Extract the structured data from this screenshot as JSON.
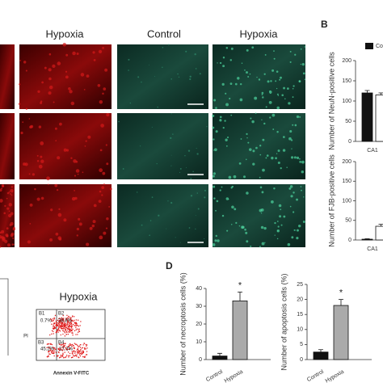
{
  "headers": [
    "Hypoxia",
    "Control",
    "Hypoxia"
  ],
  "panel_letters": [
    "B",
    "D"
  ],
  "flow": {
    "title": "Hypoxia",
    "y_label": "PI",
    "x_label": "Annexin V-FITC",
    "quadrants": [
      {
        "name": "B1",
        "percent": "0.7%"
      },
      {
        "name": "B2",
        "percent": "38.8%"
      },
      {
        "name": "B3",
        "percent": "45.2%"
      },
      {
        "name": "B4",
        "percent": "17.3%"
      }
    ]
  },
  "chart_data": [
    {
      "type": "bar",
      "y_label": "Number of NeuN-positive cells",
      "categories": [
        "CA1"
      ],
      "series": [
        {
          "name": "Co",
          "color": "#111111",
          "values": [
            120
          ],
          "errors": [
            6
          ]
        },
        {
          "color": "#ffffff",
          "values": [
            115
          ],
          "errors": [
            5
          ]
        }
      ],
      "ylim": [
        0,
        200
      ],
      "yticks": [
        0,
        50,
        100,
        150,
        200
      ]
    },
    {
      "type": "bar",
      "y_label": "Number of FJB-positive cells",
      "categories": [
        "CA1"
      ],
      "series": [
        {
          "color": "#111111",
          "values": [
            2
          ],
          "errors": [
            1
          ]
        },
        {
          "color": "#ffffff",
          "values": [
            35
          ],
          "errors": [
            5
          ]
        }
      ],
      "ylim": [
        0,
        200
      ],
      "yticks": [
        0,
        50,
        100,
        150,
        200
      ]
    },
    {
      "type": "bar",
      "y_label": "Number of necroptosis cells (%)",
      "categories": [
        "Control",
        "Hypoxia"
      ],
      "series": [
        {
          "colors": [
            "#111111",
            "#aaaaaa"
          ],
          "values": [
            2,
            33
          ],
          "errors": [
            1.5,
            5
          ]
        }
      ],
      "annotation": "*",
      "ylim": [
        0,
        40
      ],
      "yticks": [
        0,
        10,
        20,
        30,
        40
      ]
    },
    {
      "type": "bar",
      "y_label": "Number of apoptosis cells (%)",
      "categories": [
        "Control",
        "Hypoxia"
      ],
      "series": [
        {
          "colors": [
            "#111111",
            "#aaaaaa"
          ],
          "values": [
            2.5,
            18
          ],
          "errors": [
            0.8,
            2
          ]
        }
      ],
      "annotation": "*",
      "ylim": [
        0,
        25
      ],
      "yticks": [
        0,
        5,
        10,
        15,
        20,
        25
      ]
    }
  ]
}
